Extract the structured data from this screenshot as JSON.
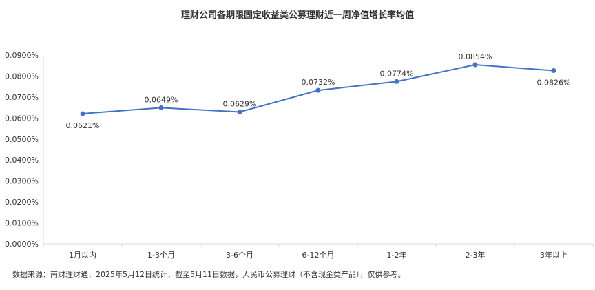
{
  "chart_data": {
    "type": "line",
    "title": "理财公司各期限固定收益类公募理财近一周净值增长率均值",
    "categories": [
      "1月以内",
      "1-3个月",
      "3-6个月",
      "6-12个月",
      "1-2年",
      "2-3年",
      "3年以上"
    ],
    "series": [
      {
        "values": [
          0.0621,
          0.0649,
          0.0629,
          0.0732,
          0.0774,
          0.0854,
          0.0826
        ],
        "data_labels": [
          "0.0621%",
          "0.0649%",
          "0.0629%",
          "0.0732%",
          "0.0774%",
          "0.0854%",
          "0.0826%"
        ]
      }
    ],
    "y_ticks": [
      "0.0000%",
      "0.0100%",
      "0.0200%",
      "0.0300%",
      "0.0400%",
      "0.0500%",
      "0.0600%",
      "0.0700%",
      "0.0800%",
      "0.0900%"
    ],
    "ylim": [
      0,
      0.09
    ],
    "xlabel": "",
    "ylabel": "",
    "grid": false,
    "legend": "none",
    "line_color": "#4472c4",
    "axis_color": "#d9d9d9"
  },
  "footnote": "数据来源：南财理财通，2025年5月12日统计，截至5月11日数据，人民币公募理财（不含现金类产品），仅供参考。"
}
